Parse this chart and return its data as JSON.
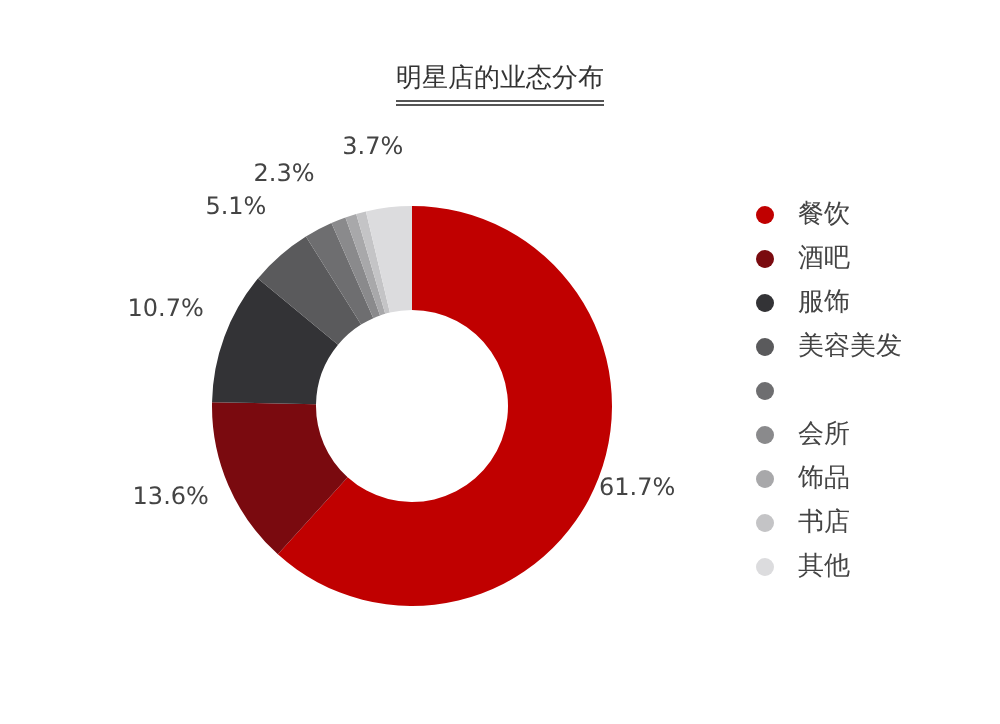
{
  "chart_data": {
    "type": "donut",
    "title": "明星店的业态分布",
    "categories": [
      "餐饮",
      "酒吧",
      "服饰",
      "美容美发",
      null,
      "会所",
      "饰品",
      "书店",
      "其他"
    ],
    "values": [
      61.7,
      13.6,
      10.7,
      5.1,
      2.3,
      1.2,
      0.9,
      0.8,
      3.7
    ],
    "value_labels": [
      "61.7%",
      "13.6%",
      "10.7%",
      "5.1%",
      "2.3%",
      null,
      null,
      null,
      "3.7%"
    ],
    "colors": [
      "#c00000",
      "#7a0a0f",
      "#333336",
      "#5a5a5c",
      "#6e6e70",
      "#8a8a8c",
      "#a8a8aa",
      "#c4c4c6",
      "#dcdcde"
    ],
    "legend": "right"
  }
}
